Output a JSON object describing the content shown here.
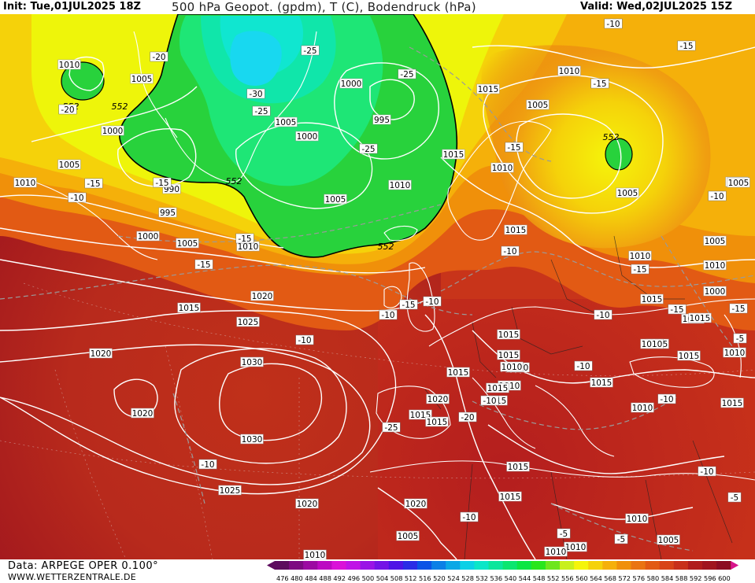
{
  "header": {
    "init": "Init: Tue,01JUL2025 18Z",
    "title": "500 hPa Geopot. (gpdm), T (C), Bodendruck (hPa)",
    "valid": "Valid: Wed,02JUL2025 15Z"
  },
  "footer": {
    "data_source": "Data: ARPEGE OPER 0.100°",
    "url": "WWW.WETTERZENTRALE.DE"
  },
  "colorscale": {
    "ticks": [
      "476",
      "480",
      "484",
      "488",
      "492",
      "496",
      "500",
      "504",
      "508",
      "512",
      "516",
      "520",
      "524",
      "528",
      "532",
      "536",
      "540",
      "544",
      "548",
      "552",
      "556",
      "560",
      "564",
      "568",
      "572",
      "576",
      "580",
      "584",
      "588",
      "592",
      "596",
      "600"
    ],
    "colors": [
      "#5c0c5e",
      "#7d0a82",
      "#9c0aa2",
      "#bc0ac2",
      "#da12d8",
      "#c014e6",
      "#9a14e6",
      "#7414e6",
      "#4e14e6",
      "#2a2ce6",
      "#0a54e6",
      "#0a80e6",
      "#0aa8e6",
      "#0ad0e6",
      "#0ae6c8",
      "#0ae69c",
      "#0ae670",
      "#0ae644",
      "#28e61c",
      "#6ee61c",
      "#c8f01c",
      "#f5f50a",
      "#f5d20a",
      "#f5b00a",
      "#f0900a",
      "#ea7412",
      "#e25a14",
      "#d84418",
      "#c8301a",
      "#b01c1c",
      "#a0141e",
      "#8c0c22"
    ]
  },
  "map_labels": {
    "isobars": [
      "1010",
      "1005",
      "1000",
      "995",
      "990",
      "1015",
      "1020",
      "1025",
      "1030"
    ],
    "geopotential": [
      "552"
    ],
    "temperature": [
      "-10",
      "-15",
      "-20",
      "-25",
      "-30",
      "-5"
    ],
    "placements": [
      {
        "t": "1010",
        "c": "isobar"
      },
      {
        "t": "1005",
        "c": "isobar"
      },
      {
        "t": "1000",
        "c": "isobar"
      },
      {
        "t": "1005",
        "c": "isobar"
      },
      {
        "t": "1010",
        "c": "isobar"
      },
      {
        "t": "995",
        "c": "isobar"
      },
      {
        "t": "1000",
        "c": "isobar"
      },
      {
        "t": "1005",
        "c": "isobar"
      },
      {
        "t": "990",
        "c": "isobar"
      },
      {
        "t": "1005",
        "c": "isobar"
      },
      {
        "t": "1000",
        "c": "isobar"
      },
      {
        "t": "1000",
        "c": "isobar"
      },
      {
        "t": "995",
        "c": "isobar"
      },
      {
        "t": "1005",
        "c": "isobar"
      },
      {
        "t": "1010",
        "c": "isobar"
      },
      {
        "t": "1010",
        "c": "isobar"
      },
      {
        "t": "1015",
        "c": "isobar"
      },
      {
        "t": "1010",
        "c": "isobar"
      },
      {
        "t": "1005",
        "c": "isobar"
      },
      {
        "t": "1010",
        "c": "isobar"
      },
      {
        "t": "1015",
        "c": "isobar"
      },
      {
        "t": "1020",
        "c": "isobar"
      },
      {
        "t": "1025",
        "c": "isobar"
      },
      {
        "t": "1020",
        "c": "isobar"
      },
      {
        "t": "1030",
        "c": "isobar"
      },
      {
        "t": "1020",
        "c": "isobar"
      },
      {
        "t": "1030",
        "c": "isobar"
      },
      {
        "t": "1025",
        "c": "isobar"
      },
      {
        "t": "1020",
        "c": "isobar"
      },
      {
        "t": "1015",
        "c": "isobar"
      },
      {
        "t": "1015",
        "c": "isobar"
      },
      {
        "t": "1015",
        "c": "isobar"
      },
      {
        "t": "1010",
        "c": "isobar"
      },
      {
        "t": "1005",
        "c": "isobar"
      },
      {
        "t": "1010",
        "c": "isobar"
      },
      {
        "t": "1005",
        "c": "isobar"
      },
      {
        "t": "1010",
        "c": "isobar"
      },
      {
        "t": "1005",
        "c": "isobar"
      },
      {
        "t": "1000",
        "c": "isobar"
      },
      {
        "t": "1010",
        "c": "isobar"
      },
      {
        "t": "1015",
        "c": "isobar"
      },
      {
        "t": "1015",
        "c": "isobar"
      },
      {
        "t": "1010",
        "c": "isobar"
      },
      {
        "t": "1015",
        "c": "isobar"
      },
      {
        "t": "1020",
        "c": "isobar"
      },
      {
        "t": "1015",
        "c": "isobar"
      },
      {
        "t": "1015",
        "c": "isobar"
      },
      {
        "t": "1015",
        "c": "isobar"
      },
      {
        "t": "1015",
        "c": "isobar"
      },
      {
        "t": "1020",
        "c": "isobar"
      },
      {
        "t": "1015",
        "c": "isobar"
      },
      {
        "t": "1015",
        "c": "isobar"
      },
      {
        "t": "1015",
        "c": "isobar"
      },
      {
        "t": "1015",
        "c": "isobar"
      },
      {
        "t": "1010",
        "c": "isobar"
      },
      {
        "t": "1015",
        "c": "isobar"
      },
      {
        "t": "1015",
        "c": "isobar"
      },
      {
        "t": "1010",
        "c": "isobar"
      },
      {
        "t": "1005",
        "c": "isobar"
      },
      {
        "t": "1005",
        "c": "isobar"
      },
      {
        "t": "1010",
        "c": "isobar"
      },
      {
        "t": "1010",
        "c": "isobar"
      },
      {
        "t": "1010",
        "c": "isobar"
      },
      {
        "t": "1010",
        "c": "isobar"
      },
      {
        "t": "1010",
        "c": "isobar"
      },
      {
        "t": "1010",
        "c": "isobar"
      },
      {
        "t": "1015",
        "c": "isobar"
      },
      {
        "t": "1005",
        "c": "isobar"
      },
      {
        "t": "552",
        "c": "geo"
      },
      {
        "t": "552",
        "c": "geo"
      },
      {
        "t": "552",
        "c": "geo"
      },
      {
        "t": "552",
        "c": "geo"
      },
      {
        "t": "552",
        "c": "geo"
      },
      {
        "t": "-20",
        "c": "temp"
      },
      {
        "t": "-25",
        "c": "temp"
      },
      {
        "t": "-30",
        "c": "temp"
      },
      {
        "t": "-25",
        "c": "temp"
      },
      {
        "t": "-25",
        "c": "temp"
      },
      {
        "t": "-25",
        "c": "temp"
      },
      {
        "t": "-15",
        "c": "temp"
      },
      {
        "t": "-10",
        "c": "temp"
      },
      {
        "t": "-15",
        "c": "temp"
      },
      {
        "t": "-20",
        "c": "temp"
      },
      {
        "t": "-15",
        "c": "temp"
      },
      {
        "t": "-15",
        "c": "temp"
      },
      {
        "t": "-10",
        "c": "temp"
      },
      {
        "t": "-15",
        "c": "temp"
      },
      {
        "t": "-10",
        "c": "temp"
      },
      {
        "t": "-15",
        "c": "temp"
      },
      {
        "t": "-15",
        "c": "temp"
      },
      {
        "t": "-10",
        "c": "temp"
      },
      {
        "t": "-15",
        "c": "temp"
      },
      {
        "t": "-10",
        "c": "temp"
      },
      {
        "t": "-15",
        "c": "temp"
      },
      {
        "t": "-15",
        "c": "temp"
      },
      {
        "t": "-10",
        "c": "temp"
      },
      {
        "t": "-10",
        "c": "temp"
      },
      {
        "t": "-15",
        "c": "temp"
      },
      {
        "t": "-10",
        "c": "temp"
      },
      {
        "t": "-20",
        "c": "temp"
      },
      {
        "t": "-25",
        "c": "temp"
      },
      {
        "t": "-10",
        "c": "temp"
      },
      {
        "t": "-10",
        "c": "temp"
      },
      {
        "t": "-10",
        "c": "temp"
      },
      {
        "t": "-10",
        "c": "temp"
      },
      {
        "t": "-10",
        "c": "temp"
      },
      {
        "t": "-10",
        "c": "temp"
      },
      {
        "t": "-5",
        "c": "temp"
      },
      {
        "t": "-5",
        "c": "temp"
      },
      {
        "t": "-5",
        "c": "temp"
      },
      {
        "t": "-5",
        "c": "temp"
      },
      {
        "t": "-5",
        "c": "temp"
      },
      {
        "t": "-5",
        "c": "temp"
      }
    ]
  },
  "colors": {
    "isobar_line": "#ffffff",
    "geopot_552_line": "#000000",
    "temp_line": "#9a9a9a",
    "coast_line": "#ffffff",
    "border_line": "#202020"
  }
}
